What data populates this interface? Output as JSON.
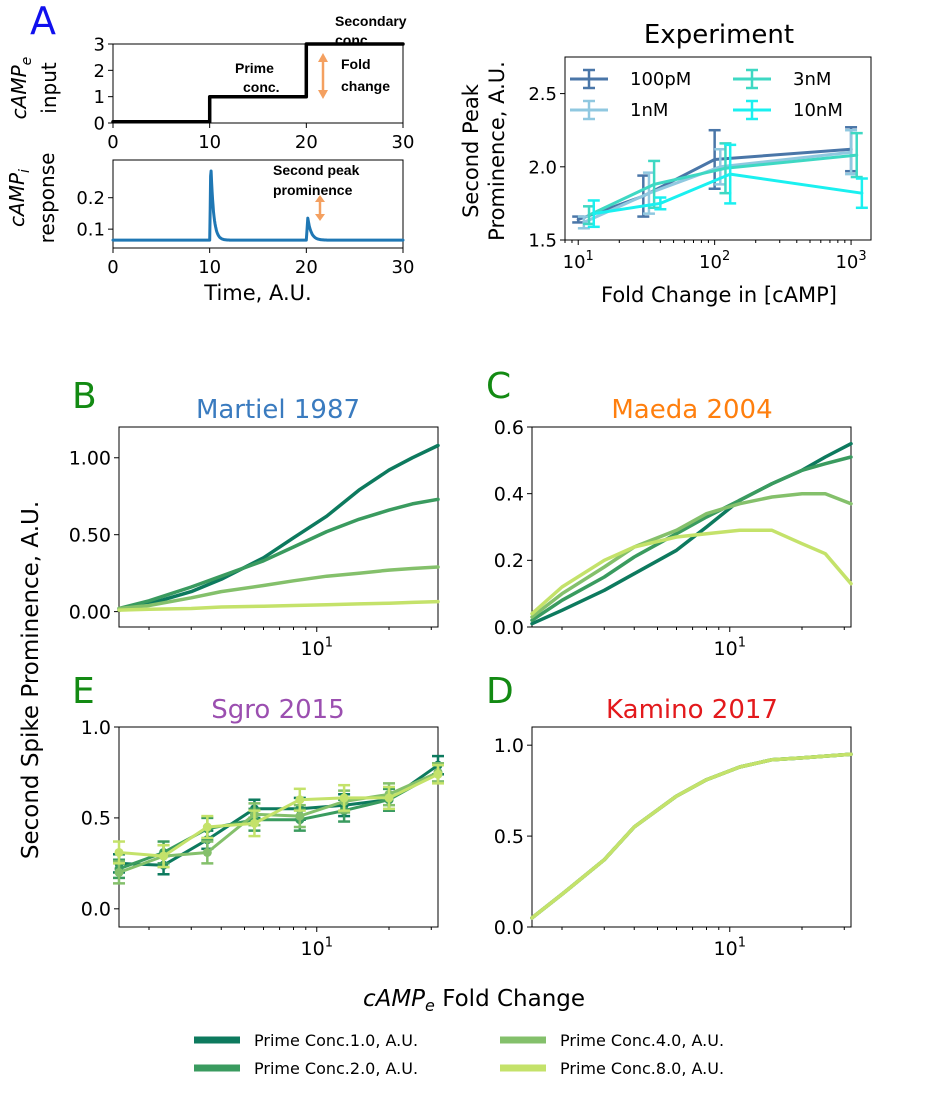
{
  "panel_letters": {
    "a": "A",
    "b": "B",
    "c": "C",
    "e": "E",
    "d": "D"
  },
  "colors": {
    "panel_letter_a": "#1010ee",
    "panel_letter_green": "#138a13",
    "martiel": "#3a7bbf",
    "maeda": "#ff7f0e",
    "sgro": "#9b4fb0",
    "kamino": "#e3191c",
    "arrow": "#f4a060",
    "response": "#1f77b4",
    "prime1": "#0d7a5e",
    "prime2": "#3a9b5f",
    "prime4": "#84c06b",
    "prime8": "#c4e26a"
  },
  "chart_data": [
    {
      "id": "input",
      "type": "line",
      "ylabel": {
        "main": "cAMP",
        "sub": "e",
        "second": "input"
      },
      "xlim": [
        0,
        30
      ],
      "ylim": [
        0,
        3
      ],
      "xticks": [
        0,
        10,
        20,
        30
      ],
      "yticks": [
        0,
        1,
        2,
        3
      ],
      "x": [
        0,
        10,
        10,
        20,
        20,
        30
      ],
      "values": [
        0.05,
        0.05,
        1,
        1,
        3,
        3
      ],
      "annotations": {
        "secondary_1": "Secondary",
        "secondary_2": "conc.",
        "prime_1": "Prime",
        "prime_2": "conc.",
        "fold_1": "Fold",
        "fold_2": "change"
      }
    },
    {
      "id": "response",
      "type": "line",
      "ylabel": {
        "main": "cAMP",
        "sub": "i",
        "second": "response"
      },
      "xlabel": "Time, A.U.",
      "xlim": [
        0,
        30
      ],
      "xticks": [
        0,
        10,
        20,
        30
      ],
      "yticks": [
        0.1,
        0.2
      ],
      "baseline": 0.065,
      "peak1": {
        "x": 10,
        "y": 0.31
      },
      "peak2": {
        "x": 20,
        "y": 0.135
      },
      "annotations": {
        "label_1": "Second peak",
        "label_2": "prominence"
      }
    },
    {
      "id": "experiment",
      "type": "line",
      "title": "Experiment",
      "xlabel": "Fold Change in [cAMP]",
      "ylabel_1": "Second Peak",
      "ylabel_2": "Prominence, A.U.",
      "xscale": "log",
      "xlim": [
        8,
        1400
      ],
      "ylim": [
        1.5,
        2.75
      ],
      "yticks": [
        1.5,
        2.0,
        2.5
      ],
      "xtick_labels": [
        {
          "base": "10",
          "exp": "1"
        },
        {
          "base": "10",
          "exp": "2"
        },
        {
          "base": "10",
          "exp": "3"
        }
      ],
      "legend_position": "top-left, two columns",
      "series": [
        {
          "name": "100pM",
          "color": "#4a76a8",
          "x": [
            10,
            30,
            100,
            1000
          ],
          "y": [
            1.64,
            1.8,
            2.05,
            2.12
          ],
          "err": [
            0.02,
            0.14,
            0.2,
            0.15
          ]
        },
        {
          "name": "1nM",
          "color": "#90c8e0",
          "x": [
            11,
            33,
            110,
            1000
          ],
          "y": [
            1.62,
            1.82,
            2.0,
            2.1
          ],
          "err": [
            0.04,
            0.14,
            0.12,
            0.15
          ]
        },
        {
          "name": "3nM",
          "color": "#3ed8c3",
          "x": [
            12,
            36,
            120,
            1100
          ],
          "y": [
            1.67,
            1.88,
            1.99,
            2.08
          ],
          "err": [
            0.06,
            0.16,
            0.17,
            0.15
          ]
        },
        {
          "name": "10nM",
          "color": "#1af0f0",
          "x": [
            13,
            40,
            130,
            1200
          ],
          "y": [
            1.68,
            1.75,
            1.95,
            1.82
          ],
          "err": [
            0.09,
            0.04,
            0.2,
            0.1
          ]
        }
      ]
    },
    {
      "id": "martiel",
      "type": "line",
      "title": "Martiel 1987",
      "xscale": "log",
      "xlim": [
        1.5,
        32
      ],
      "ylim": [
        -0.1,
        1.2
      ],
      "ytick_labels": [
        "0.00",
        "0.50",
        "1.00"
      ],
      "yticks": [
        0,
        0.5,
        1.0
      ],
      "xtick_label": {
        "base": "10",
        "exp": "1"
      },
      "x": [
        1.5,
        2,
        3,
        4,
        6,
        8,
        11,
        15,
        20,
        25,
        32
      ],
      "series": [
        {
          "name": "Prime Conc.1.0, A.U.",
          "values": [
            0.01,
            0.05,
            0.13,
            0.21,
            0.35,
            0.48,
            0.62,
            0.79,
            0.92,
            1.0,
            1.08
          ]
        },
        {
          "name": "Prime Conc.2.0, A.U.",
          "values": [
            0.02,
            0.07,
            0.16,
            0.23,
            0.33,
            0.42,
            0.52,
            0.6,
            0.66,
            0.7,
            0.73
          ]
        },
        {
          "name": "Prime Conc.4.0, A.U.",
          "values": [
            0.02,
            0.04,
            0.09,
            0.13,
            0.17,
            0.2,
            0.23,
            0.25,
            0.27,
            0.28,
            0.29
          ]
        },
        {
          "name": "Prime Conc.8.0, A.U.",
          "values": [
            0.01,
            0.015,
            0.02,
            0.03,
            0.035,
            0.04,
            0.045,
            0.05,
            0.055,
            0.06,
            0.065
          ]
        }
      ]
    },
    {
      "id": "maeda",
      "type": "line",
      "title": "Maeda 2004",
      "xscale": "log",
      "xlim": [
        1.5,
        32
      ],
      "ylim": [
        0,
        0.6
      ],
      "ytick_labels": [
        "0.0",
        "0.2",
        "0.4",
        "0.6"
      ],
      "yticks": [
        0,
        0.2,
        0.4,
        0.6
      ],
      "xtick_label": {
        "base": "10",
        "exp": "1"
      },
      "x": [
        1.5,
        2,
        3,
        4,
        6,
        8,
        11,
        15,
        20,
        25,
        32
      ],
      "series": [
        {
          "name": "Prime Conc.1.0, A.U.",
          "values": [
            0.01,
            0.05,
            0.11,
            0.16,
            0.23,
            0.3,
            0.38,
            0.43,
            0.47,
            0.51,
            0.55
          ]
        },
        {
          "name": "Prime Conc.2.0, A.U.",
          "values": [
            0.02,
            0.08,
            0.15,
            0.21,
            0.28,
            0.33,
            0.38,
            0.43,
            0.47,
            0.49,
            0.51
          ]
        },
        {
          "name": "Prime Conc.4.0, A.U.",
          "values": [
            0.03,
            0.1,
            0.18,
            0.24,
            0.29,
            0.34,
            0.37,
            0.39,
            0.4,
            0.4,
            0.37
          ]
        },
        {
          "name": "Prime Conc.8.0, A.U.",
          "values": [
            0.04,
            0.12,
            0.2,
            0.24,
            0.27,
            0.28,
            0.29,
            0.29,
            0.25,
            0.22,
            0.13
          ]
        }
      ]
    },
    {
      "id": "sgro",
      "type": "line",
      "title": "Sgro 2015",
      "xscale": "log",
      "xlim": [
        1.5,
        32
      ],
      "ylim": [
        -0.1,
        1.0
      ],
      "ytick_labels": [
        "0.0",
        "0.5",
        "1.0"
      ],
      "yticks": [
        0,
        0.5,
        1.0
      ],
      "xtick_label": {
        "base": "10",
        "exp": "1"
      },
      "x": [
        1.5,
        2.3,
        3.5,
        5.5,
        8.5,
        13,
        20,
        32
      ],
      "series": [
        {
          "name": "Prime Conc.1.0, A.U.",
          "values": [
            0.25,
            0.24,
            0.38,
            0.55,
            0.55,
            0.57,
            0.6,
            0.79
          ],
          "err": [
            0.05,
            0.05,
            0.05,
            0.05,
            0.06,
            0.06,
            0.06,
            0.05
          ]
        },
        {
          "name": "Prime Conc.2.0, A.U.",
          "values": [
            0.22,
            0.31,
            0.44,
            0.49,
            0.49,
            0.54,
            0.6,
            0.75
          ],
          "err": [
            0.05,
            0.06,
            0.06,
            0.06,
            0.06,
            0.06,
            0.06,
            0.05
          ]
        },
        {
          "name": "Prime Conc.4.0, A.U.",
          "values": [
            0.2,
            0.29,
            0.31,
            0.52,
            0.51,
            0.59,
            0.63,
            0.75
          ],
          "err": [
            0.06,
            0.06,
            0.06,
            0.06,
            0.06,
            0.06,
            0.06,
            0.05
          ]
        },
        {
          "name": "Prime Conc.8.0, A.U.",
          "values": [
            0.31,
            0.29,
            0.45,
            0.47,
            0.6,
            0.61,
            0.61,
            0.74
          ],
          "err": [
            0.06,
            0.06,
            0.06,
            0.07,
            0.06,
            0.07,
            0.06,
            0.05
          ]
        }
      ]
    },
    {
      "id": "kamino",
      "type": "line",
      "title": "Kamino 2017",
      "xscale": "log",
      "xlim": [
        1.5,
        32
      ],
      "ylim": [
        0,
        1.1
      ],
      "ytick_labels": [
        "0.0",
        "0.5",
        "1.0"
      ],
      "yticks": [
        0,
        0.5,
        1.0
      ],
      "xtick_label": {
        "base": "10",
        "exp": "1"
      },
      "x": [
        1.5,
        2,
        3,
        4,
        6,
        8,
        11,
        15,
        20,
        25,
        32
      ],
      "series": [
        {
          "name": "Prime Conc.1.0, A.U.",
          "values": [
            0.05,
            0.18,
            0.37,
            0.55,
            0.72,
            0.81,
            0.88,
            0.92,
            0.93,
            0.94,
            0.95
          ]
        },
        {
          "name": "Prime Conc.2.0, A.U.",
          "values": [
            0.05,
            0.18,
            0.37,
            0.55,
            0.72,
            0.81,
            0.88,
            0.92,
            0.93,
            0.94,
            0.95
          ]
        },
        {
          "name": "Prime Conc.4.0, A.U.",
          "values": [
            0.05,
            0.18,
            0.37,
            0.55,
            0.72,
            0.81,
            0.88,
            0.92,
            0.93,
            0.94,
            0.95
          ]
        },
        {
          "name": "Prime Conc.8.0, A.U.",
          "values": [
            0.05,
            0.18,
            0.37,
            0.55,
            0.72,
            0.81,
            0.88,
            0.92,
            0.93,
            0.94,
            0.95
          ]
        }
      ]
    }
  ],
  "shared": {
    "ylabel": "Second Spike Prominence, A.U.",
    "xlabel_main": "cAMP",
    "xlabel_sub": "e",
    "xlabel_rest": " Fold Change",
    "legend": [
      "Prime Conc.1.0, A.U.",
      "Prime Conc.2.0, A.U.",
      "Prime Conc.4.0, A.U.",
      "Prime Conc.8.0, A.U."
    ]
  }
}
